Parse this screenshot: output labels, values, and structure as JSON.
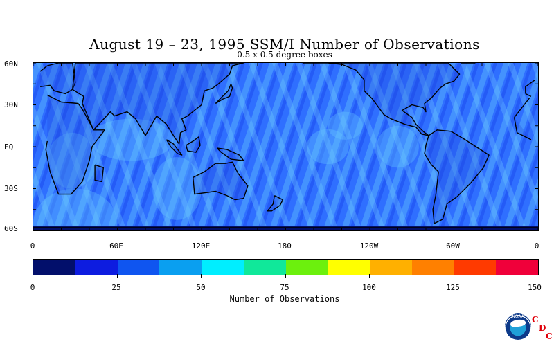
{
  "title": "August 19 – 23, 1995 SSM/I Number of Observations",
  "subtitle": "0.5 x 0.5 degree boxes",
  "map": {
    "lat_labels": [
      "60N",
      "30N",
      "EQ",
      "30S",
      "60S"
    ],
    "lon_labels": [
      "0",
      "60E",
      "120E",
      "180",
      "120W",
      "60W",
      "0"
    ],
    "lat_range": [
      60,
      -60
    ],
    "lon_range": [
      0,
      360
    ],
    "ocean_base_color": "#2f6fff",
    "stripe_color": "#55aefc",
    "coastline_color": "#000000"
  },
  "colorbar": {
    "title": "Number of Observations",
    "tick_labels": [
      "0",
      "25",
      "50",
      "75",
      "100",
      "125",
      "150"
    ],
    "tick_values": [
      0,
      25,
      50,
      75,
      100,
      125,
      150
    ],
    "range": [
      0,
      150
    ],
    "colors": [
      "#020f6b",
      "#0d1ce0",
      "#0f55f0",
      "#0a9ff0",
      "#00eeff",
      "#10e89a",
      "#6cf00d",
      "#ffff00",
      "#ffb000",
      "#ff8000",
      "#ff3a00",
      "#f0003a"
    ]
  },
  "logo": {
    "noaa_text": "NOAA",
    "cdc_letters": [
      "C",
      "D",
      "C"
    ],
    "cdc_color": "#e0000a"
  }
}
